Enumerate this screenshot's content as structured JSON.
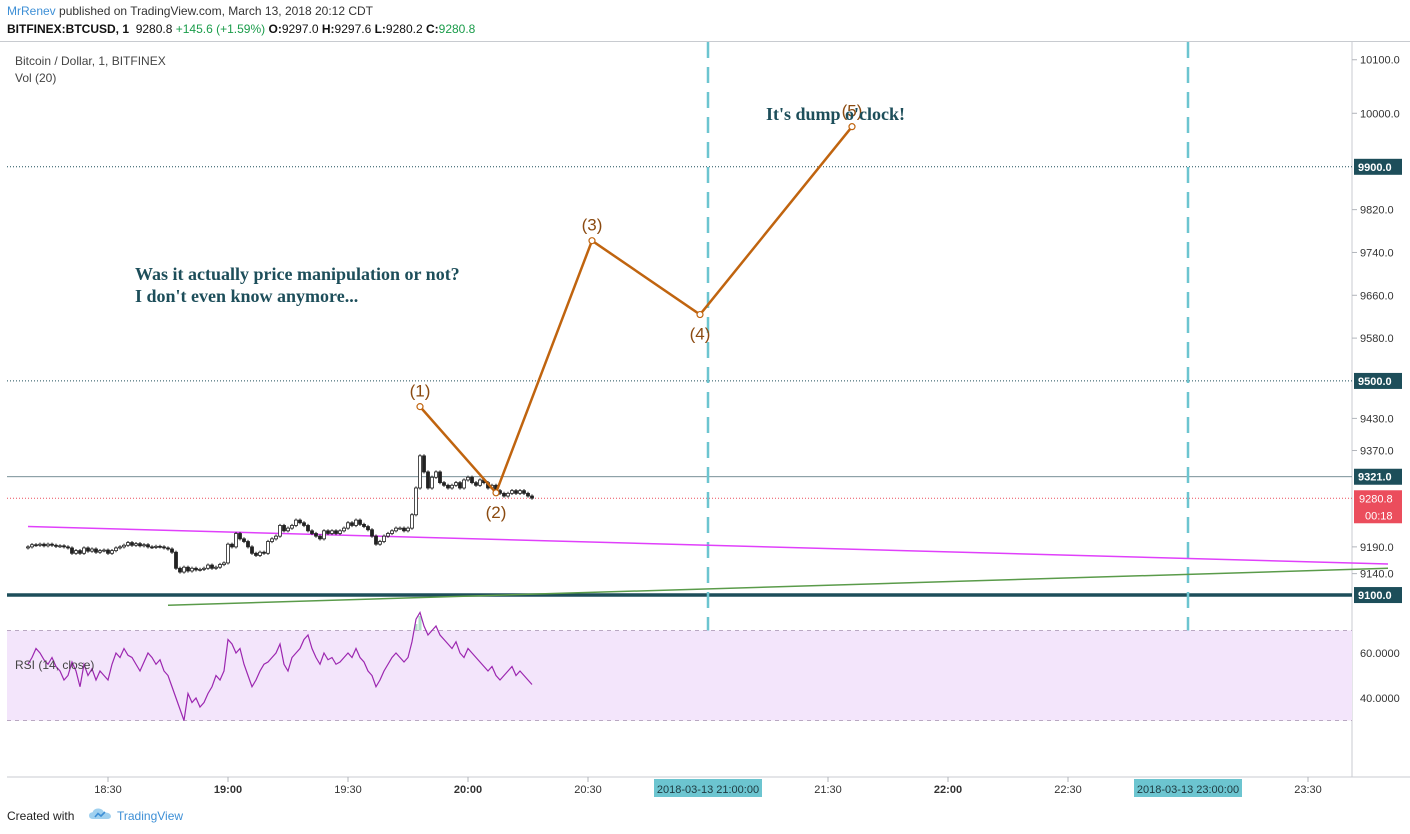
{
  "header": {
    "author": "MrRenev",
    "published": "published on TradingView.com, March 13, 2018 20:12 CDT",
    "symbol": "BITFINEX:BTCUSD, 1",
    "price": "9280.8",
    "change": "+145.6 (+1.59%)",
    "o_label": "O:",
    "o_value": "9297.0",
    "h_label": "H:",
    "h_value": "9297.6",
    "l_label": "L:",
    "l_value": "9280.2",
    "c_label": "C:",
    "c_value": "9280.8"
  },
  "footer": {
    "created_with": "Created with",
    "brand": "TradingView"
  },
  "colors": {
    "up": "#53b987",
    "down": "#eb4d5c",
    "wave": "#c0640f",
    "wave_label": "#8b4a10",
    "magenta": "#e040fb",
    "green_trend": "#5a9b4a",
    "annotation": "#1d4e5a",
    "hline": "#1d4e5a",
    "dashed_vline": "#6cc5d0",
    "rsi_fill": "#f3e5fb",
    "rsi_line": "#9c27b0"
  },
  "chart_data": [
    {
      "type": "candlestick",
      "title": "Bitcoin / Dollar, 1, BITFINEX",
      "volume_label": "Vol (20)",
      "y_ticks": [
        "10100.0",
        "10000.0",
        "9820.0",
        "9740.0",
        "9660.0",
        "9580.0",
        "9430.0",
        "9370.0",
        "9190.0",
        "9140.0"
      ],
      "x_ticks": [
        "18:30",
        "19:00",
        "19:30",
        "20:00",
        "20:30",
        "21:30",
        "22:00",
        "22:30",
        "23:30"
      ],
      "x_tick_bold": [
        "19:00",
        "20:00",
        "22:00"
      ],
      "time_markers": [
        "2018-03-13 21:00:00",
        "2018-03-13 23:00:00"
      ],
      "price_levels": [
        {
          "price": 9900.0,
          "label": "9900.0",
          "style": "dotted"
        },
        {
          "price": 9500.0,
          "label": "9500.0",
          "style": "dotted"
        },
        {
          "price": 9321.0,
          "label": "9321.0",
          "style": "solid"
        },
        {
          "price": 9100.0,
          "label": "9100.0",
          "style": "thick"
        }
      ],
      "last_price": {
        "price": 9280.8,
        "label": "9280.8",
        "countdown": "00:18"
      },
      "candles": {
        "start_time": "18:10",
        "interval_minutes": 1,
        "close": [
          9190,
          9194,
          9193,
          9195,
          9192,
          9195,
          9193,
          9191,
          9192,
          9190,
          9188,
          9178,
          9183,
          9178,
          9188,
          9182,
          9186,
          9180,
          9183,
          9184,
          9178,
          9183,
          9188,
          9190,
          9193,
          9198,
          9193,
          9196,
          9192,
          9194,
          9190,
          9189,
          9191,
          9190,
          9188,
          9186,
          9180,
          9150,
          9143,
          9152,
          9145,
          9150,
          9147,
          9148,
          9150,
          9156,
          9150,
          9152,
          9157,
          9160,
          9195,
          9190,
          9215,
          9205,
          9200,
          9190,
          9178,
          9174,
          9180,
          9178,
          9200,
          9205,
          9210,
          9230,
          9220,
          9225,
          9230,
          9240,
          9235,
          9230,
          9220,
          9215,
          9210,
          9205,
          9220,
          9215,
          9220,
          9215,
          9220,
          9225,
          9235,
          9230,
          9240,
          9232,
          9228,
          9222,
          9210,
          9195,
          9200,
          9210,
          9215,
          9220,
          9225,
          9225,
          9220,
          9225,
          9250,
          9300,
          9360,
          9330,
          9300,
          9320,
          9330,
          9310,
          9305,
          9300,
          9305,
          9310,
          9300,
          9315,
          9320,
          9310,
          9305,
          9315,
          9310,
          9300,
          9305,
          9295,
          9290,
          9285,
          9290,
          9295,
          9290,
          9295,
          9290,
          9285,
          9281
        ]
      },
      "wave": [
        {
          "label": "(1)",
          "time": "19:48",
          "price": 9452
        },
        {
          "label": "(2)",
          "time": "20:07",
          "price": 9291
        },
        {
          "label": "(3)",
          "time": "20:31",
          "price": 9762
        },
        {
          "label": "(4)",
          "time": "20:58",
          "price": 9624
        },
        {
          "label": "(5)",
          "time": "21:36",
          "price": 9975
        }
      ],
      "trendlines": [
        {
          "name": "magenta",
          "from": {
            "time": "18:10",
            "price": 9228
          },
          "to": {
            "time": "23:50",
            "price": 9158
          }
        },
        {
          "name": "green",
          "from": {
            "time": "18:45",
            "price": 9081
          },
          "to": {
            "time": "23:50",
            "price": 9150
          }
        }
      ],
      "annotations": [
        {
          "text": "Was it actually price manipulation or not?",
          "bold": true
        },
        {
          "text": "I don't even know anymore...",
          "bold": true
        },
        {
          "text": "It's dump o'clock!",
          "bold": true
        }
      ]
    },
    {
      "type": "line",
      "title": "RSI (14, close)",
      "y_ticks": [
        "60.0000",
        "40.0000"
      ],
      "band": [
        30,
        70
      ],
      "values": [
        55,
        58,
        62,
        60,
        57,
        55,
        58,
        54,
        52,
        48,
        50,
        56,
        52,
        45,
        55,
        50,
        53,
        48,
        52,
        50,
        48,
        55,
        60,
        58,
        62,
        59,
        58,
        55,
        52,
        56,
        60,
        58,
        55,
        57,
        52,
        50,
        45,
        40,
        35,
        30,
        42,
        38,
        40,
        36,
        38,
        42,
        45,
        50,
        48,
        52,
        66,
        64,
        60,
        62,
        55,
        50,
        45,
        48,
        52,
        55,
        56,
        58,
        60,
        64,
        55,
        52,
        58,
        60,
        62,
        66,
        68,
        62,
        58,
        55,
        60,
        57,
        58,
        55,
        56,
        58,
        60,
        58,
        62,
        58,
        56,
        52,
        50,
        45,
        48,
        52,
        55,
        58,
        60,
        58,
        56,
        58,
        65,
        75,
        78,
        72,
        68,
        70,
        72,
        68,
        66,
        64,
        62,
        65,
        60,
        58,
        62,
        60,
        58,
        56,
        54,
        52,
        54,
        50,
        48,
        50,
        52,
        54,
        50,
        52,
        50,
        48,
        46
      ]
    }
  ]
}
